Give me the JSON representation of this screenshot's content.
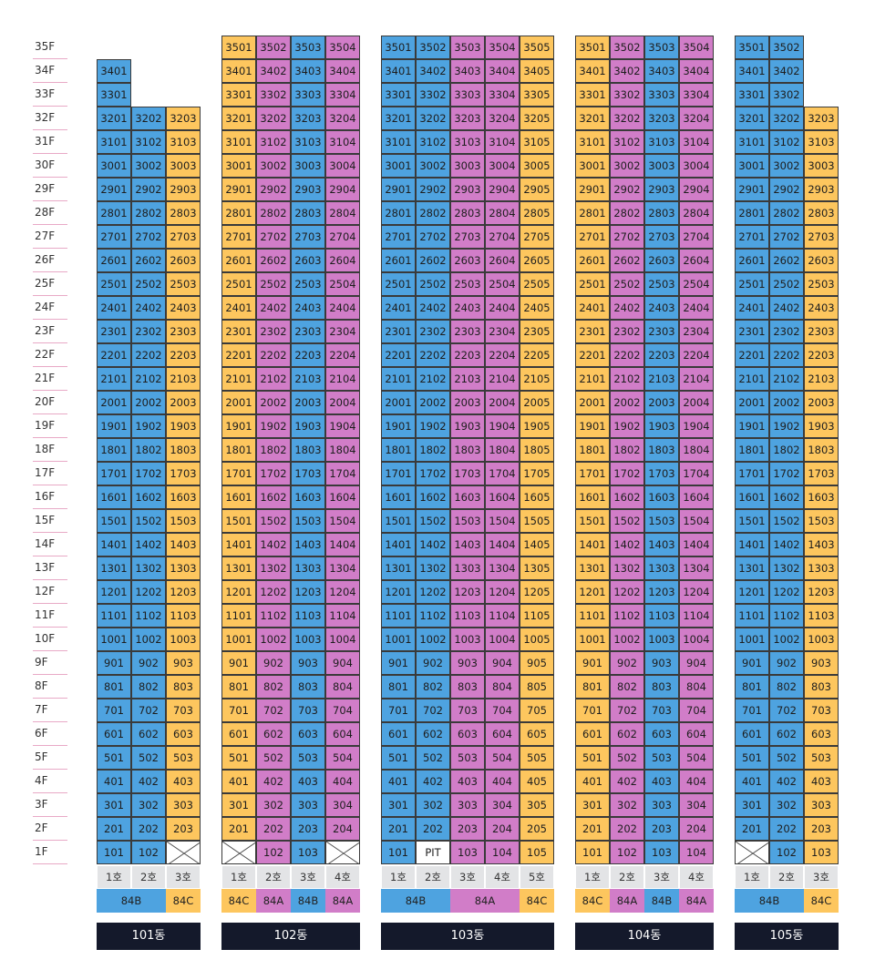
{
  "floors": [
    "35F",
    "34F",
    "33F",
    "32F",
    "31F",
    "30F",
    "29F",
    "28F",
    "27F",
    "26F",
    "25F",
    "24F",
    "23F",
    "22F",
    "21F",
    "20F",
    "19F",
    "18F",
    "17F",
    "16F",
    "15F",
    "14F",
    "13F",
    "12F",
    "11F",
    "10F",
    "9F",
    "8F",
    "7F",
    "6F",
    "5F",
    "4F",
    "3F",
    "2F",
    "1F"
  ],
  "colors": {
    "blue": "#4ea3e0",
    "pink": "#d17dc8",
    "yellow": "#fdc65e",
    "label_bg": "#14192b",
    "header_bg": "#e3e4e6"
  },
  "buildings": [
    {
      "name": "101동",
      "line_colors": [
        "blue",
        "blue",
        "yellow"
      ],
      "top_floors": [
        34,
        32,
        32
      ],
      "first_floor": [
        "101",
        "102",
        "X"
      ],
      "ho_labels": [
        "1호",
        "2호",
        "3호"
      ],
      "types": [
        {
          "label": "84B",
          "color": "blue",
          "span": 2
        },
        {
          "label": "84C",
          "color": "yellow",
          "span": 1
        }
      ]
    },
    {
      "name": "102동",
      "line_colors": [
        "yellow",
        "pink",
        "blue",
        "pink"
      ],
      "top_floors": [
        35,
        35,
        35,
        35
      ],
      "first_floor": [
        "X",
        "102",
        "103",
        "X"
      ],
      "ho_labels": [
        "1호",
        "2호",
        "3호",
        "4호"
      ],
      "types": [
        {
          "label": "84C",
          "color": "yellow",
          "span": 1
        },
        {
          "label": "84A",
          "color": "pink",
          "span": 1
        },
        {
          "label": "84B",
          "color": "blue",
          "span": 1
        },
        {
          "label": "84A",
          "color": "pink",
          "span": 1
        }
      ]
    },
    {
      "name": "103동",
      "line_colors": [
        "blue",
        "blue",
        "pink",
        "pink",
        "yellow"
      ],
      "top_floors": [
        35,
        35,
        35,
        35,
        35
      ],
      "first_floor": [
        "101",
        "PIT",
        "103",
        "104",
        "105"
      ],
      "ho_labels": [
        "1호",
        "2호",
        "3호",
        "4호",
        "5호"
      ],
      "types": [
        {
          "label": "84B",
          "color": "blue",
          "span": 2
        },
        {
          "label": "84A",
          "color": "pink",
          "span": 2
        },
        {
          "label": "84C",
          "color": "yellow",
          "span": 1
        }
      ]
    },
    {
      "name": "104동",
      "line_colors": [
        "yellow",
        "pink",
        "blue",
        "pink"
      ],
      "top_floors": [
        35,
        35,
        35,
        35
      ],
      "first_floor": [
        "101",
        "102",
        "103",
        "104"
      ],
      "ho_labels": [
        "1호",
        "2호",
        "3호",
        "4호"
      ],
      "types": [
        {
          "label": "84C",
          "color": "yellow",
          "span": 1
        },
        {
          "label": "84A",
          "color": "pink",
          "span": 1
        },
        {
          "label": "84B",
          "color": "blue",
          "span": 1
        },
        {
          "label": "84A",
          "color": "pink",
          "span": 1
        }
      ]
    },
    {
      "name": "105동",
      "line_colors": [
        "blue",
        "blue",
        "yellow"
      ],
      "top_floors": [
        35,
        35,
        32
      ],
      "first_floor": [
        "X",
        "102",
        "103"
      ],
      "ho_labels": [
        "1호",
        "2호",
        "3호"
      ],
      "types": [
        {
          "label": "84B",
          "color": "blue",
          "span": 2
        },
        {
          "label": "84C",
          "color": "yellow",
          "span": 1
        }
      ]
    }
  ]
}
